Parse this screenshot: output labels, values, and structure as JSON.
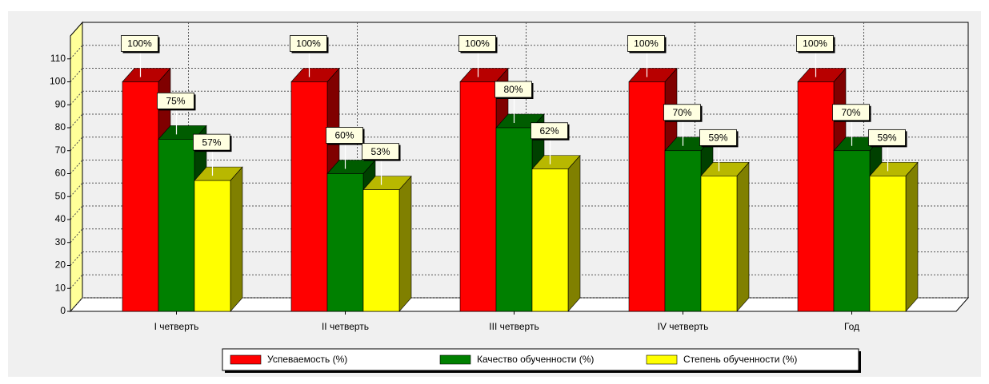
{
  "chart_data": {
    "type": "bar3d",
    "categories": [
      "I четверть",
      "II четверть",
      "III четверть",
      "IV четверть",
      "Год"
    ],
    "series": [
      {
        "name": "Успеваемость (%)",
        "color": "#ff0000",
        "values": [
          100,
          100,
          100,
          100,
          100
        ],
        "value_labels": [
          "100%",
          "100%",
          "100%",
          "100%",
          "100%"
        ]
      },
      {
        "name": "Качество обученности (%)",
        "color": "#008000",
        "values": [
          75,
          60,
          80,
          70,
          70
        ],
        "value_labels": [
          "75%",
          "60%",
          "80%",
          "70%",
          "70%"
        ]
      },
      {
        "name": "Степень обученности (%)",
        "color": "#ffff00",
        "values": [
          57,
          53,
          62,
          59,
          59
        ],
        "value_labels": [
          "57%",
          "53%",
          "62%",
          "59%",
          "59%"
        ]
      }
    ],
    "ylim": [
      0,
      120
    ],
    "yticks": [
      0,
      10,
      20,
      30,
      40,
      50,
      60,
      70,
      80,
      90,
      100,
      110
    ],
    "grid": true,
    "legend": "bottom"
  }
}
